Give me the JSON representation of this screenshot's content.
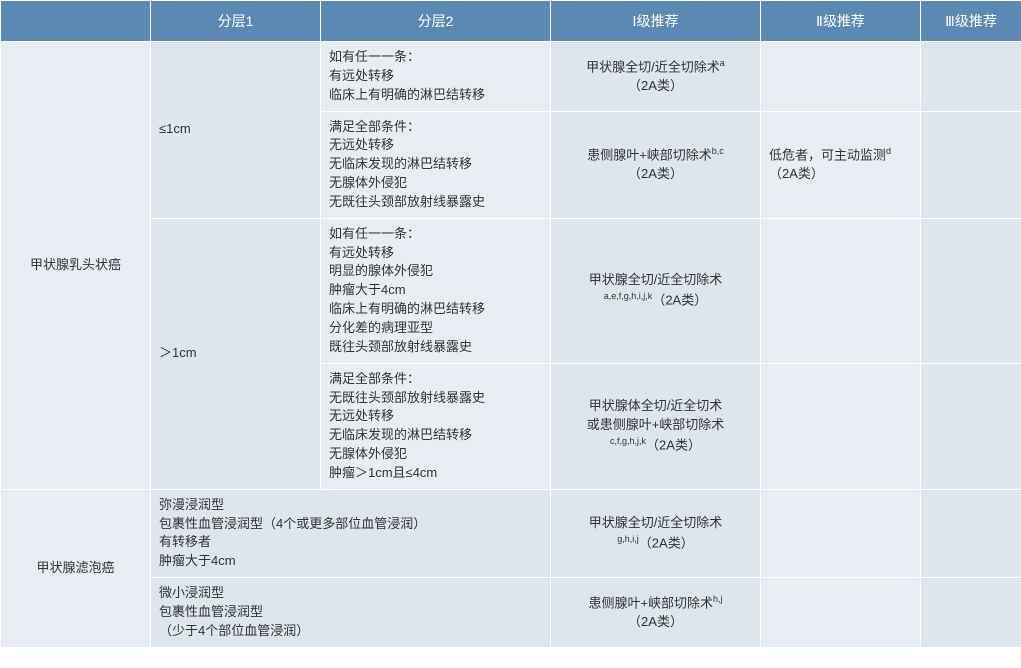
{
  "headers": {
    "col0": "",
    "col1": "分层1",
    "col2": "分层2",
    "col3": "Ⅰ级推荐",
    "col4": "Ⅱ级推荐",
    "col5": "Ⅲ级推荐"
  },
  "group1": {
    "label": "甲状腺乳头状癌",
    "sub1": {
      "label": "≤1cm",
      "row1": {
        "cond_l1": "如有任一一条：",
        "cond_l2": "有远处转移",
        "cond_l3": "临床上有明确的淋巴结转移",
        "rec1_l1": "甲状腺全切/近全切除术",
        "rec1_sup": "a",
        "rec1_l2": "（2A类）",
        "rec2": "",
        "rec3": ""
      },
      "row2": {
        "cond_l1": "满足全部条件：",
        "cond_l2": "无远处转移",
        "cond_l3": "无临床发现的淋巴结转移",
        "cond_l4": "无腺体外侵犯",
        "cond_l5": "无既往头颈部放射线暴露史",
        "rec1_l1": "患侧腺叶+峡部切除术",
        "rec1_sup": "b,c",
        "rec1_l2": "（2A类）",
        "rec2_l1": "低危者，可主动监测",
        "rec2_sup": "d",
        "rec2_l2": "（2A类）",
        "rec3": ""
      }
    },
    "sub2": {
      "label": "＞1cm",
      "row1": {
        "cond_l1": "如有任一一条：",
        "cond_l2": "有远处转移",
        "cond_l3": "明显的腺体外侵犯",
        "cond_l4": "肿瘤大于4cm",
        "cond_l5": "临床上有明确的淋巴结转移",
        "cond_l6": "分化差的病理亚型",
        "cond_l7": "既往头颈部放射线暴露史",
        "rec1_l1": "甲状腺全切/近全切除术",
        "rec1_sup": "a,e,f,g,h,i,j,k",
        "rec1_l2": "（2A类）",
        "rec2": "",
        "rec3": ""
      },
      "row2": {
        "cond_l1": "满足全部条件：",
        "cond_l2": "无既往头颈部放射线暴露史",
        "cond_l3": "无远处转移",
        "cond_l4": "无临床发现的淋巴结转移",
        "cond_l5": "无腺体外侵犯",
        "cond_l6": "肿瘤＞1cm且≤4cm",
        "rec1_l1": "甲状腺体全切/近全切术",
        "rec1_l2": "或患侧腺叶+峡部切除术",
        "rec1_sup": "c,f,g,h,j,k",
        "rec1_l3": "（2A类）",
        "rec2": "",
        "rec3": ""
      }
    }
  },
  "group2": {
    "label": "甲状腺滤泡癌",
    "row1": {
      "cond_l1": "弥漫浸润型",
      "cond_l2": "包裹性血管浸润型（4个或更多部位血管浸润）",
      "cond_l3": "有转移者",
      "cond_l4": "肿瘤大于4cm",
      "rec1_l1": "甲状腺全切/近全切除术",
      "rec1_sup": "g,h,i,j",
      "rec1_l2": "（2A类）",
      "rec2": "",
      "rec3": ""
    },
    "row2": {
      "cond_l1": "微小浸润型",
      "cond_l2": "包裹性血管浸润型",
      "cond_l3": "（少于4个部位血管浸润）",
      "rec1_l1": "患侧腺叶+峡部切除术",
      "rec1_sup": "h,j",
      "rec1_l2": "（2A类）",
      "rec2": "",
      "rec3": ""
    }
  }
}
